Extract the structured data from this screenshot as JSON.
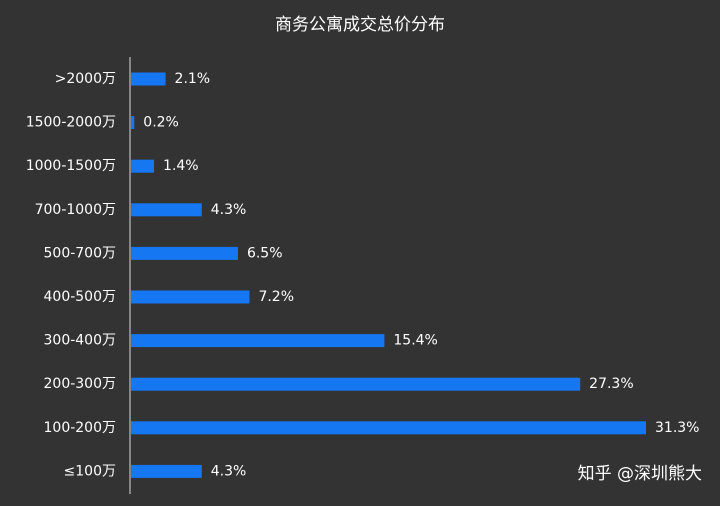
{
  "chart_data": {
    "type": "bar",
    "orientation": "horizontal",
    "title": "商务公寓成交总价分布",
    "xlabel": "",
    "ylabel": "",
    "categories": [
      ">2000万",
      "1500-2000万",
      "1000-1500万",
      "700-1000万",
      "500-700万",
      "400-500万",
      "300-400万",
      "200-300万",
      "100-200万",
      "≤100万"
    ],
    "values": [
      2.1,
      0.2,
      1.4,
      4.3,
      6.5,
      7.2,
      15.4,
      27.3,
      31.3,
      4.3
    ],
    "value_labels": [
      "2.1%",
      "0.2%",
      "1.4%",
      "4.3%",
      "6.5%",
      "7.2%",
      "15.4%",
      "27.3%",
      "31.3%",
      "4.3%"
    ],
    "xlim": [
      0,
      32
    ],
    "grid": false,
    "legend": "none",
    "colors": {
      "bar": "#1677f2",
      "background": "#333333",
      "axis": "#bfbfbf",
      "text": "#ffffff"
    }
  },
  "watermark": "知乎 @深圳熊大"
}
